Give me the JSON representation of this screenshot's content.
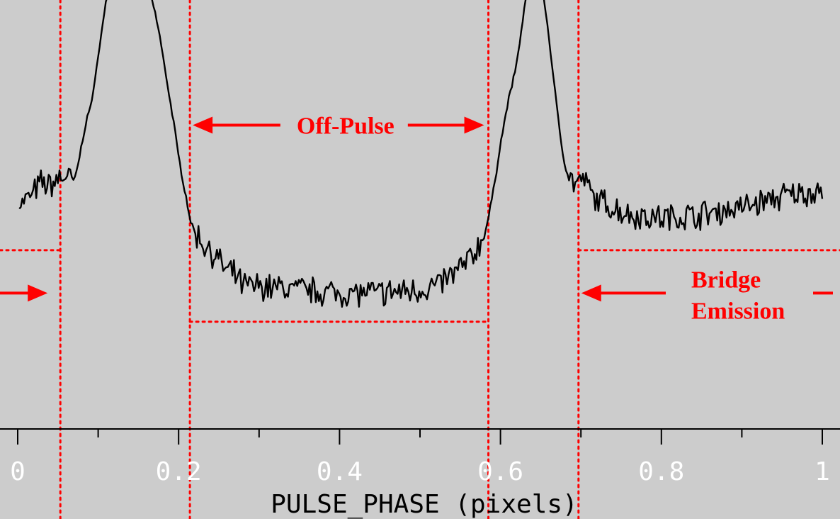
{
  "chart_data": {
    "type": "line",
    "title": "",
    "xlabel": "PULSE_PHASE (pixels)",
    "ylabel": "",
    "xlim": [
      -0.022,
      1.022
    ],
    "ylim": [
      0,
      120
    ],
    "x_ticks": [
      0,
      0.2,
      0.4,
      0.6,
      0.8,
      1.0
    ],
    "x_tick_labels": [
      "0",
      "0.2",
      "0.4",
      "0.6",
      "0.8",
      "1"
    ],
    "grid": false,
    "legend": "none",
    "series": [
      {
        "color": "#000000",
        "profile_points": [
          [
            0.002,
            62
          ],
          [
            0.01,
            64
          ],
          [
            0.02,
            66
          ],
          [
            0.03,
            69
          ],
          [
            0.04,
            68
          ],
          [
            0.05,
            70
          ],
          [
            0.06,
            71
          ],
          [
            0.065,
            70
          ],
          [
            0.07,
            69
          ],
          [
            0.075,
            74
          ],
          [
            0.08,
            80
          ],
          [
            0.085,
            86
          ],
          [
            0.09,
            90
          ],
          [
            0.095,
            95
          ],
          [
            0.1,
            105
          ],
          [
            0.105,
            112
          ],
          [
            0.11,
            120
          ],
          [
            0.115,
            123
          ],
          [
            0.12,
            126
          ],
          [
            0.155,
            126
          ],
          [
            0.165,
            122
          ],
          [
            0.175,
            112
          ],
          [
            0.185,
            98
          ],
          [
            0.195,
            84
          ],
          [
            0.2,
            76
          ],
          [
            0.205,
            70
          ],
          [
            0.21,
            64
          ],
          [
            0.215,
            58
          ],
          [
            0.22,
            55
          ],
          [
            0.23,
            52
          ],
          [
            0.24,
            50
          ],
          [
            0.25,
            47
          ],
          [
            0.26,
            44
          ],
          [
            0.27,
            43
          ],
          [
            0.28,
            40
          ],
          [
            0.3,
            40
          ],
          [
            0.35,
            39
          ],
          [
            0.4,
            38
          ],
          [
            0.45,
            38
          ],
          [
            0.5,
            39
          ],
          [
            0.52,
            40
          ],
          [
            0.54,
            43
          ],
          [
            0.56,
            47
          ],
          [
            0.57,
            50
          ],
          [
            0.58,
            54
          ],
          [
            0.585,
            59
          ],
          [
            0.59,
            65
          ],
          [
            0.595,
            72
          ],
          [
            0.6,
            80
          ],
          [
            0.605,
            86
          ],
          [
            0.61,
            92
          ],
          [
            0.62,
            102
          ],
          [
            0.625,
            110
          ],
          [
            0.63,
            118
          ],
          [
            0.635,
            126
          ],
          [
            0.65,
            126
          ],
          [
            0.655,
            119
          ],
          [
            0.66,
            110
          ],
          [
            0.665,
            100
          ],
          [
            0.67,
            90
          ],
          [
            0.675,
            81
          ],
          [
            0.68,
            74
          ],
          [
            0.685,
            70
          ],
          [
            0.69,
            69
          ],
          [
            0.7,
            69
          ],
          [
            0.71,
            68
          ],
          [
            0.72,
            64
          ],
          [
            0.74,
            62
          ],
          [
            0.76,
            60
          ],
          [
            0.8,
            59
          ],
          [
            0.85,
            60
          ],
          [
            0.9,
            62
          ],
          [
            0.95,
            65
          ],
          [
            0.98,
            66
          ],
          [
            1.0,
            67
          ]
        ],
        "noise_amplitude": 3.2,
        "noise_start_x": 0.0
      }
    ],
    "guides": {
      "vertical_lines_x": [
        0.053,
        0.214,
        0.585,
        0.697
      ],
      "horizontal_levels": [
        {
          "x_range": [
            -0.022,
            0.053
          ],
          "y": 50
        },
        {
          "x_range": [
            0.214,
            0.585
          ],
          "y": 30
        },
        {
          "x_range": [
            0.697,
            1.022
          ],
          "y": 50
        }
      ],
      "color": "#ff0000"
    },
    "annotations": {
      "off_pulse": {
        "text": "Off-Pulse",
        "x_from": 0.214,
        "x_to": 0.585,
        "y": 85
      },
      "bridge_emission": {
        "line1": "Bridge",
        "line2": "Emission",
        "arrow_to_x": 0.697,
        "y": 38
      },
      "left_arrow": {
        "x_to": 0.053,
        "y": 38
      }
    }
  }
}
